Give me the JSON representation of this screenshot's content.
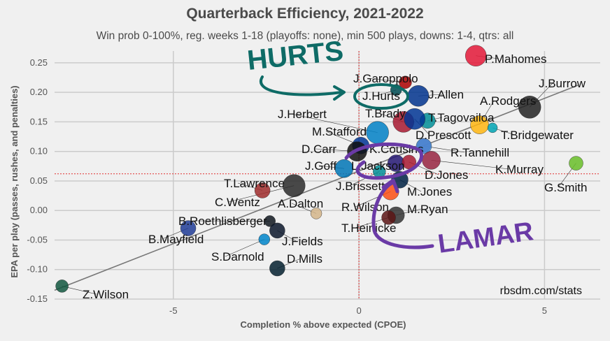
{
  "chart_data": {
    "type": "scatter",
    "title": "Quarterback Efficiency, 2021-2022",
    "subtitle": "Win prob 0-100%, reg. weeks 1-18 (playoffs: none), min 500 plays, downs: 1-4, qtrs: all",
    "xlabel": "Completion % above expected (CPOE)",
    "ylabel": "EPA per play (passes, rushes, and penalties)",
    "xlim": [
      -8.2,
      6.5
    ],
    "ylim": [
      -0.15,
      0.27
    ],
    "xticks": [
      "-5",
      "0",
      "5"
    ],
    "yticks": [
      "0.25",
      "0.20",
      "0.15",
      "0.10",
      "0.05",
      "0.00",
      "-0.05",
      "-0.10",
      "-0.15"
    ],
    "mean_x": 0.0,
    "mean_y": 0.062,
    "fit_line": [
      [
        -8.2,
        -0.135
      ],
      [
        5.9,
        0.212
      ]
    ],
    "credit": "rbsdm.com/stats",
    "annotations": [
      "HURTS",
      "LAMAR"
    ],
    "points": [
      {
        "name": "P.Mahomes",
        "x": 3.15,
        "y": 0.262,
        "color": "#e31837",
        "size": 15
      },
      {
        "name": "J.Garoppolo",
        "x": 1.25,
        "y": 0.217,
        "color": "#aa0000",
        "size": 9
      },
      {
        "name": "J.Hurts",
        "x": 1.0,
        "y": 0.204,
        "color": "#004c54",
        "size": 8
      },
      {
        "name": "J.Allen",
        "x": 1.6,
        "y": 0.194,
        "color": "#00338d",
        "size": 15
      },
      {
        "name": "J.Burrow",
        "x": 4.6,
        "y": 0.175,
        "color": "#222222",
        "size": 16
      },
      {
        "name": "A.Rodgers",
        "x": 3.25,
        "y": 0.145,
        "color": "#ffb612",
        "size": 13
      },
      {
        "name": "T.Brady",
        "x": 1.2,
        "y": 0.15,
        "color": "#a71930",
        "size": 15
      },
      {
        "name": "T.Tagovailoa",
        "x": 1.85,
        "y": 0.152,
        "color": "#008e97",
        "size": 11
      },
      {
        "name": "D.Prescott",
        "x": 1.5,
        "y": 0.155,
        "color": "#003594",
        "size": 15
      },
      {
        "name": "T.Bridgewater",
        "x": 3.6,
        "y": 0.14,
        "color": "#00a4b4",
        "size": 7
      },
      {
        "name": "J.Herbert",
        "x": 0.5,
        "y": 0.132,
        "color": "#0080c6",
        "size": 16
      },
      {
        "name": "M.Stafford",
        "x": 0.05,
        "y": 0.11,
        "color": "#003594",
        "size": 12
      },
      {
        "name": "K.Cousins",
        "x": 1.75,
        "y": 0.11,
        "color": "#4f2683",
        "size": 10
      },
      {
        "name": "R.Tannehill",
        "x": 1.75,
        "y": 0.109,
        "color": "#4b92db",
        "size": 11
      },
      {
        "name": "D.Carr",
        "x": -0.05,
        "y": 0.1,
        "color": "#101010",
        "size": 14
      },
      {
        "name": "K.Murray",
        "x": 1.95,
        "y": 0.085,
        "color": "#97233f",
        "size": 13
      },
      {
        "name": "G.Smith",
        "x": 5.85,
        "y": 0.08,
        "color": "#69be28",
        "size": 10
      },
      {
        "name": "J.Goff",
        "x": -0.4,
        "y": 0.071,
        "color": "#0076b6",
        "size": 13
      },
      {
        "name": "L.Jackson",
        "x": 1.0,
        "y": 0.08,
        "color": "#241773",
        "size": 12
      },
      {
        "name": "D.Jones",
        "x": 1.35,
        "y": 0.082,
        "color": "#a71930",
        "size": 10
      },
      {
        "name": "J.Brissett",
        "x": 0.55,
        "y": 0.066,
        "color": "#008e97",
        "size": 9
      },
      {
        "name": "M.Jones",
        "x": 1.1,
        "y": 0.052,
        "color": "#002244",
        "size": 12
      },
      {
        "name": "T.Lawrence",
        "x": -2.6,
        "y": 0.034,
        "color": "#9f2b2b",
        "size": 11
      },
      {
        "name": "C.Wentz",
        "x": -1.75,
        "y": 0.042,
        "color": "#2a2a2a",
        "size": 16
      },
      {
        "name": "A.Dalton",
        "x": -1.15,
        "y": -0.005,
        "color": "#d4b58a",
        "size": 8
      },
      {
        "name": "R.Wilson",
        "x": 0.85,
        "y": 0.032,
        "color": "#fb4f14",
        "size": 12
      },
      {
        "name": "M.Ryan",
        "x": 1.0,
        "y": -0.008,
        "color": "#333333",
        "size": 12
      },
      {
        "name": "T.Heinicke",
        "x": 0.8,
        "y": -0.012,
        "color": "#5a1414",
        "size": 10
      },
      {
        "name": "B.Roethlisberger",
        "x": -2.4,
        "y": -0.018,
        "color": "#101820",
        "size": 8
      },
      {
        "name": "B.Mayfield",
        "x": -4.6,
        "y": -0.03,
        "color": "#203c97",
        "size": 11
      },
      {
        "name": "J.Fields",
        "x": -2.2,
        "y": -0.034,
        "color": "#0b162a",
        "size": 11
      },
      {
        "name": "S.Darnold",
        "x": -2.55,
        "y": -0.049,
        "color": "#0085ca",
        "size": 8
      },
      {
        "name": "D.Mills",
        "x": -2.2,
        "y": -0.098,
        "color": "#03202f",
        "size": 11
      },
      {
        "name": "Z.Wilson",
        "x": -8.0,
        "y": -0.128,
        "color": "#125740",
        "size": 9
      }
    ]
  }
}
